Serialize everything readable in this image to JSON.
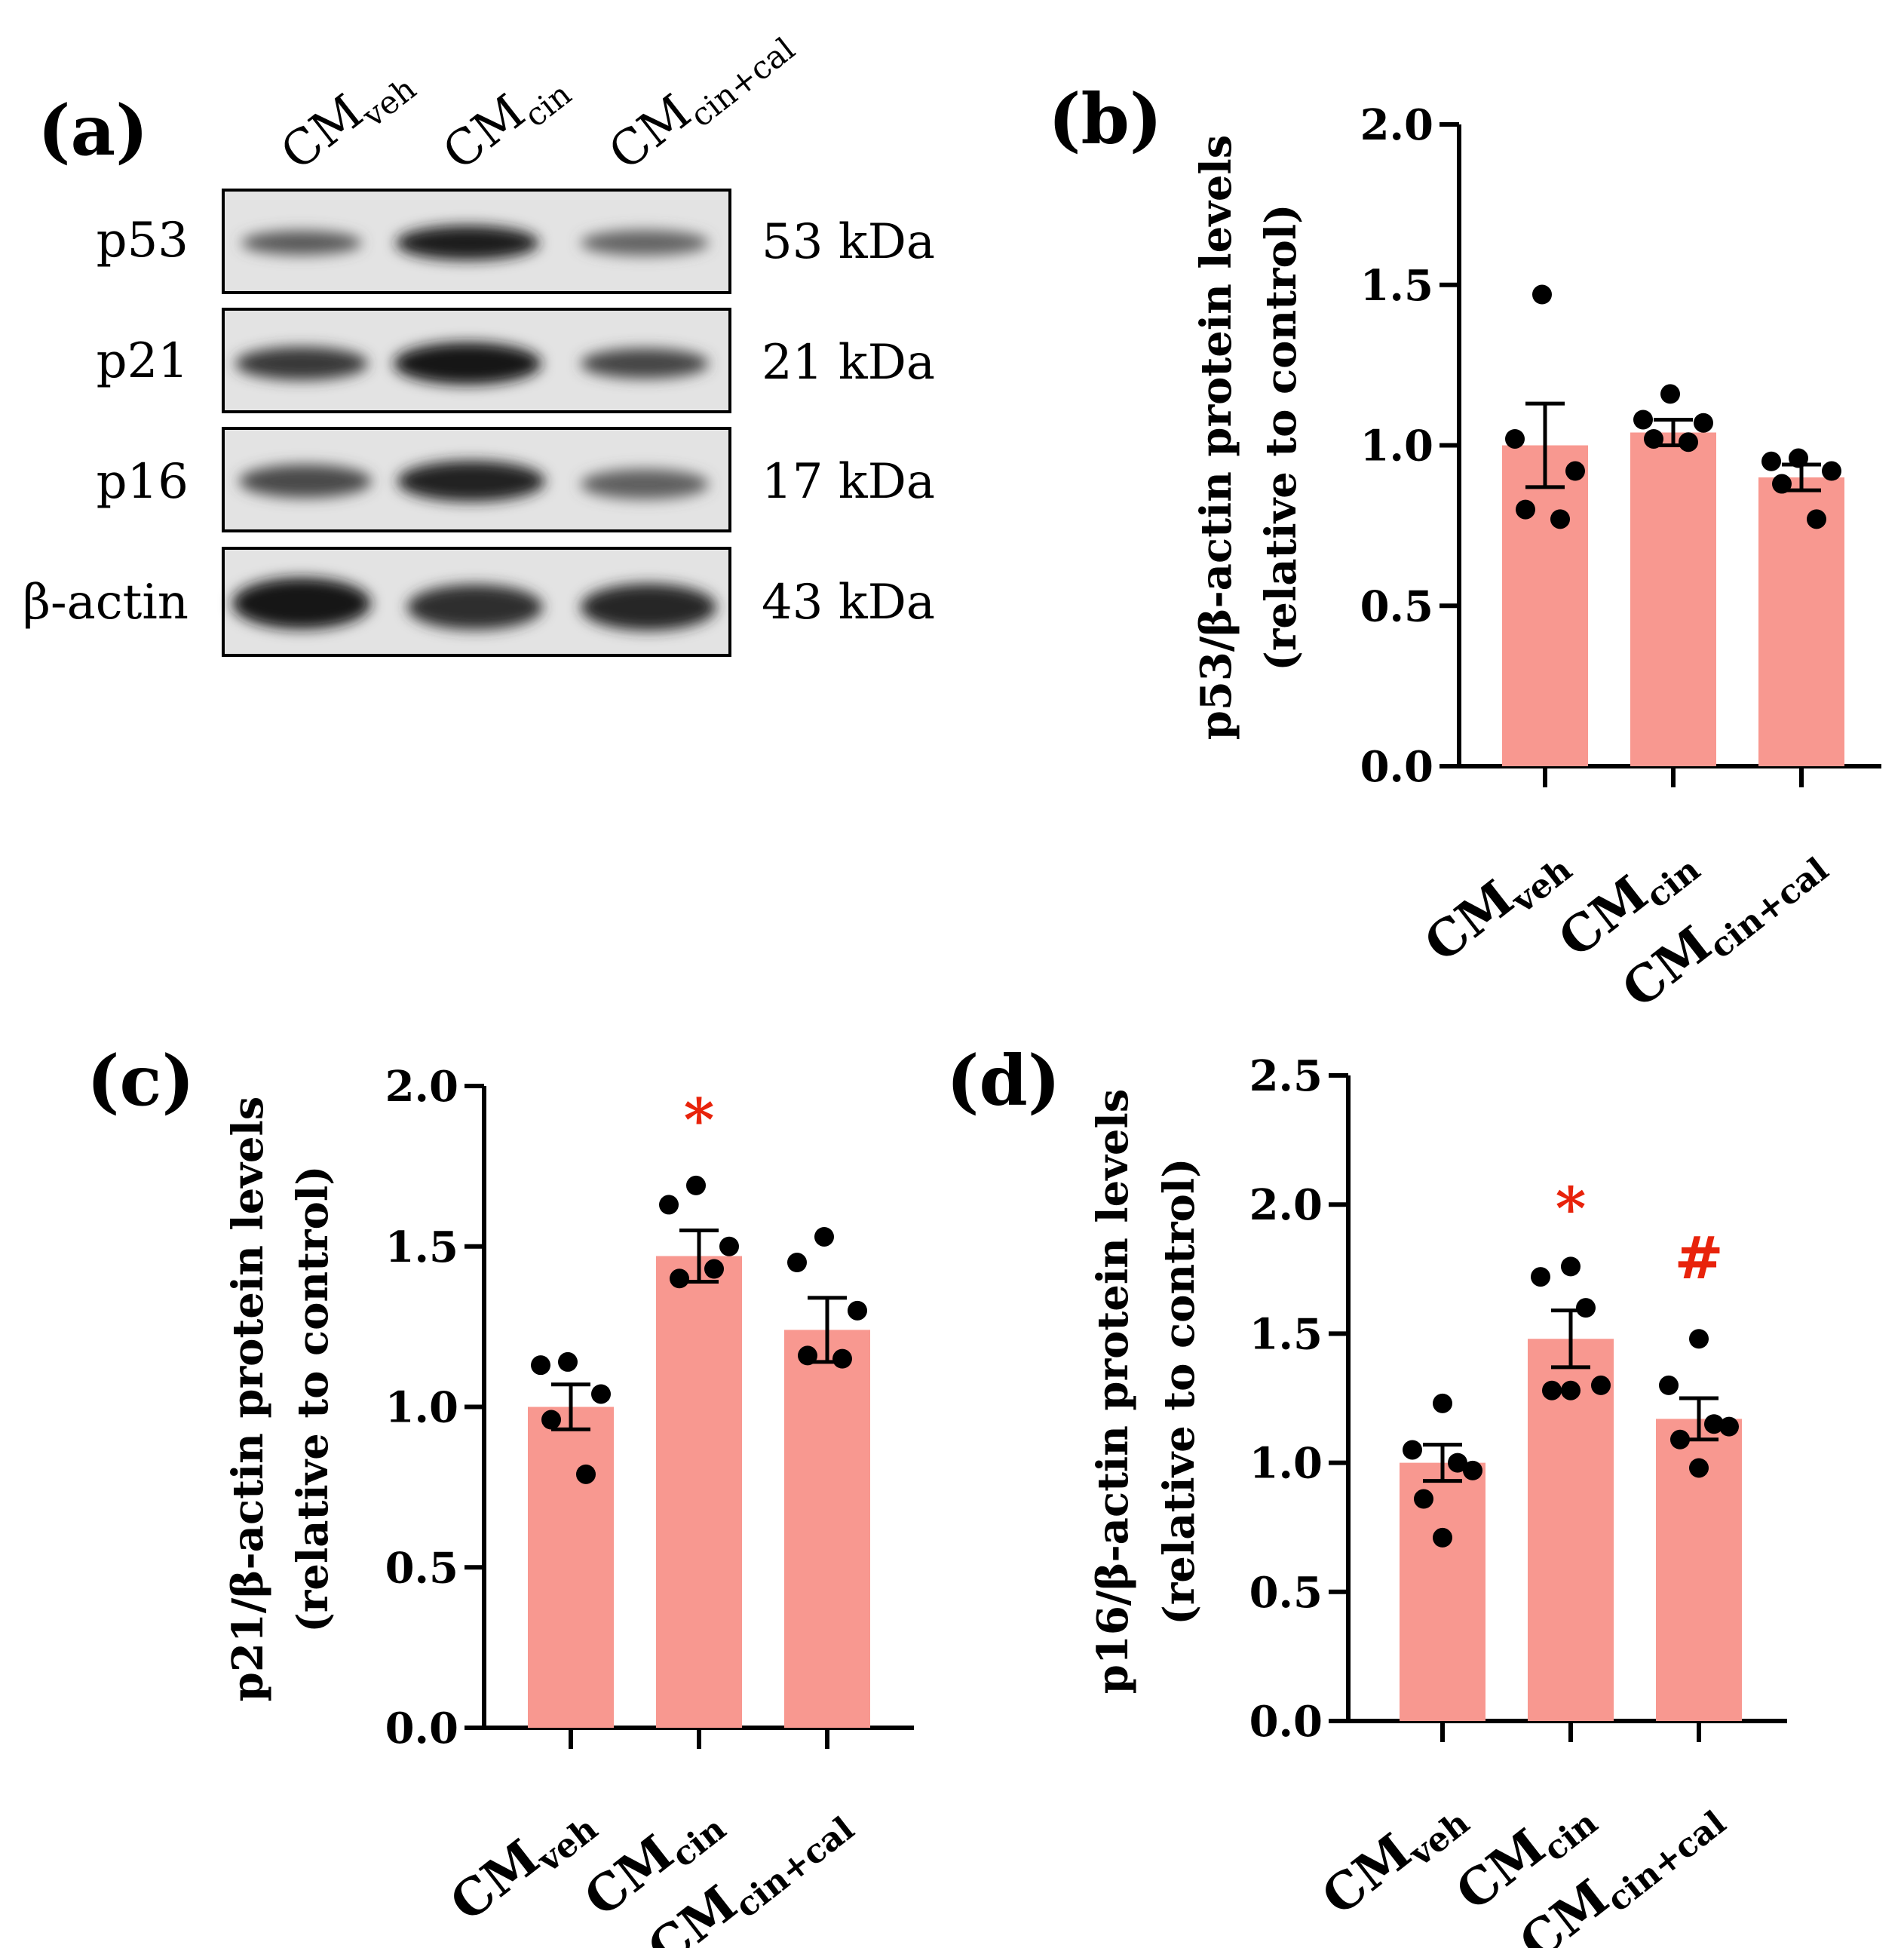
{
  "colors": {
    "bar": "#f89890",
    "dot": "#000000",
    "axis": "#000000",
    "significance": "#e8230b"
  },
  "panel_a": {
    "label": "(a)",
    "columns": [
      {
        "main": "CM",
        "sub": "veh"
      },
      {
        "main": "CM",
        "sub": "cin"
      },
      {
        "main": "CM",
        "sub": "cin+cal"
      }
    ],
    "rows": [
      {
        "name": "p53",
        "size": "53 kDa",
        "intensity": [
          0.65,
          0.95,
          0.6
        ]
      },
      {
        "name": "p21",
        "size": "21 kDa",
        "intensity": [
          0.8,
          0.98,
          0.75
        ]
      },
      {
        "name": "p16",
        "size": "17 kDa",
        "intensity": [
          0.72,
          0.92,
          0.62
        ]
      },
      {
        "name": "β-actin",
        "size": "43 kDa",
        "intensity": [
          0.98,
          0.85,
          0.88
        ]
      }
    ]
  },
  "chart_data": [
    {
      "panel": "(b)",
      "type": "bar",
      "categories": [
        {
          "main": "CM",
          "sub": "veh"
        },
        {
          "main": "CM",
          "sub": "cin"
        },
        {
          "main": "CM",
          "sub": "cin+cal"
        }
      ],
      "values": [
        1.0,
        1.04,
        0.9
      ],
      "sem": [
        0.13,
        0.04,
        0.04
      ],
      "points": [
        [
          1.47,
          1.02,
          0.92,
          0.8,
          0.77
        ],
        [
          1.16,
          1.08,
          1.07,
          1.02,
          1.01
        ],
        [
          0.96,
          0.95,
          0.92,
          0.88,
          0.77
        ]
      ],
      "significance": [
        "",
        "",
        ""
      ],
      "ylabel_line1": "p53/β-actin protein levels",
      "ylabel_line2": "(relative to control)",
      "ylim": [
        0,
        2.0
      ],
      "yticks": [
        0.0,
        0.5,
        1.0,
        1.5,
        2.0
      ],
      "ytick_labels": [
        "0.0",
        "0.5",
        "1.0",
        "1.5",
        "2.0"
      ]
    },
    {
      "panel": "(c)",
      "type": "bar",
      "categories": [
        {
          "main": "CM",
          "sub": "veh"
        },
        {
          "main": "CM",
          "sub": "cin"
        },
        {
          "main": "CM",
          "sub": "cin+cal"
        }
      ],
      "values": [
        1.0,
        1.47,
        1.24
      ],
      "sem": [
        0.07,
        0.08,
        0.1
      ],
      "points": [
        [
          1.14,
          1.13,
          1.04,
          0.96,
          0.79
        ],
        [
          1.69,
          1.63,
          1.5,
          1.4,
          1.43
        ],
        [
          1.53,
          1.45,
          1.3,
          1.16,
          1.15
        ]
      ],
      "significance": [
        "",
        "*",
        ""
      ],
      "ylabel_line1": "p21/β-actin protein levels",
      "ylabel_line2": "(relative to control)",
      "ylim": [
        0,
        2.0
      ],
      "yticks": [
        0.0,
        0.5,
        1.0,
        1.5,
        2.0
      ],
      "ytick_labels": [
        "0.0",
        "0.5",
        "1.0",
        "1.5",
        "2.0"
      ]
    },
    {
      "panel": "(d)",
      "type": "bar",
      "categories": [
        {
          "main": "CM",
          "sub": "veh"
        },
        {
          "main": "CM",
          "sub": "cin"
        },
        {
          "main": "CM",
          "sub": "cin+cal"
        }
      ],
      "values": [
        1.0,
        1.48,
        1.17
      ],
      "sem": [
        0.07,
        0.11,
        0.08
      ],
      "points": [
        [
          1.23,
          1.05,
          1.0,
          0.97,
          0.86,
          0.71
        ],
        [
          1.76,
          1.72,
          1.6,
          1.3,
          1.28,
          1.28
        ],
        [
          1.48,
          1.3,
          1.15,
          1.14,
          1.09,
          0.98
        ]
      ],
      "significance": [
        "",
        "*",
        "#"
      ],
      "ylabel_line1": "p16/β-actin protein levels",
      "ylabel_line2": "(relative to control)",
      "ylim": [
        0,
        2.5
      ],
      "yticks": [
        0.0,
        0.5,
        1.0,
        1.5,
        2.0,
        2.5
      ],
      "ytick_labels": [
        "0.0",
        "0.5",
        "1.0",
        "1.5",
        "2.0",
        "2.5"
      ]
    }
  ]
}
